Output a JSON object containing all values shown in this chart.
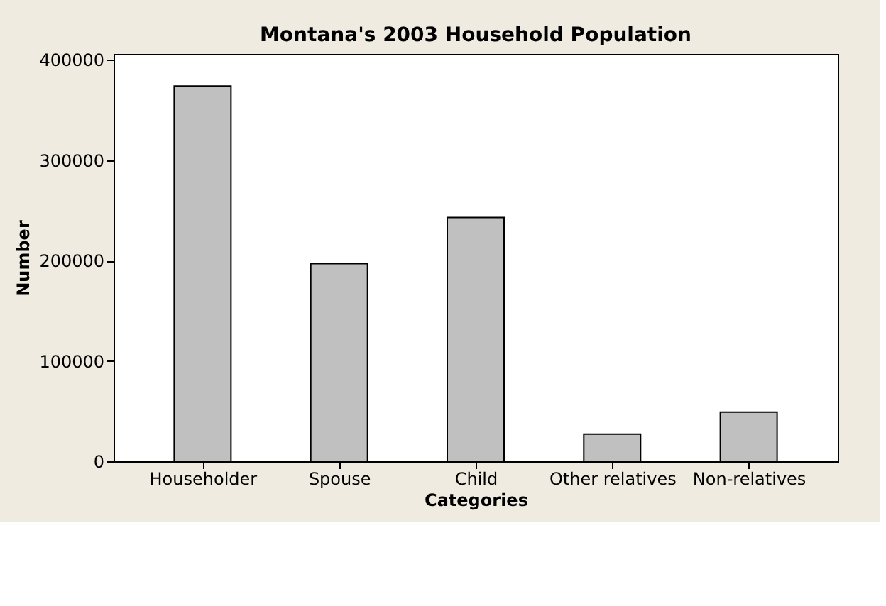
{
  "chart_data": {
    "type": "bar",
    "title": "Montana's 2003 Household Population",
    "xlabel": "Categories",
    "ylabel": "Number",
    "categories": [
      "Householder",
      "Spouse",
      "Child",
      "Other relatives",
      "Non-relatives"
    ],
    "values": [
      374000,
      197000,
      243000,
      27000,
      49000
    ],
    "color": "#c0c0c0",
    "ylim": [
      0,
      406000
    ],
    "yticks": [
      0,
      100000,
      200000,
      300000,
      400000
    ],
    "grid": false
  }
}
